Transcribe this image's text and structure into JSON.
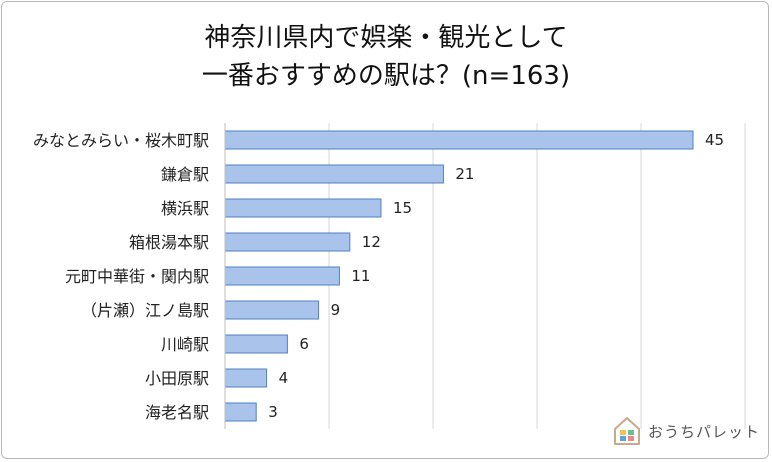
{
  "title": {
    "line1": "神奈川県内で娯楽・観光として",
    "line2": "一番おすすめの駅は？(n=163)"
  },
  "chart_data": {
    "type": "bar",
    "orientation": "horizontal",
    "categories": [
      "みなとみらい・桜木町駅",
      "鎌倉駅",
      "横浜駅",
      "箱根湯本駅",
      "元町中華街・関内駅",
      "（片瀬）江ノ島駅",
      "川崎駅",
      "小田原駅",
      "海老名駅"
    ],
    "values": [
      45,
      21,
      15,
      12,
      11,
      9,
      6,
      4,
      3
    ],
    "xlim": [
      0,
      50
    ],
    "grid": true,
    "bar_color": "#a9c3ea",
    "bar_edge_color": "#4f7fc1"
  },
  "logo": {
    "text": "おうちパレット"
  }
}
